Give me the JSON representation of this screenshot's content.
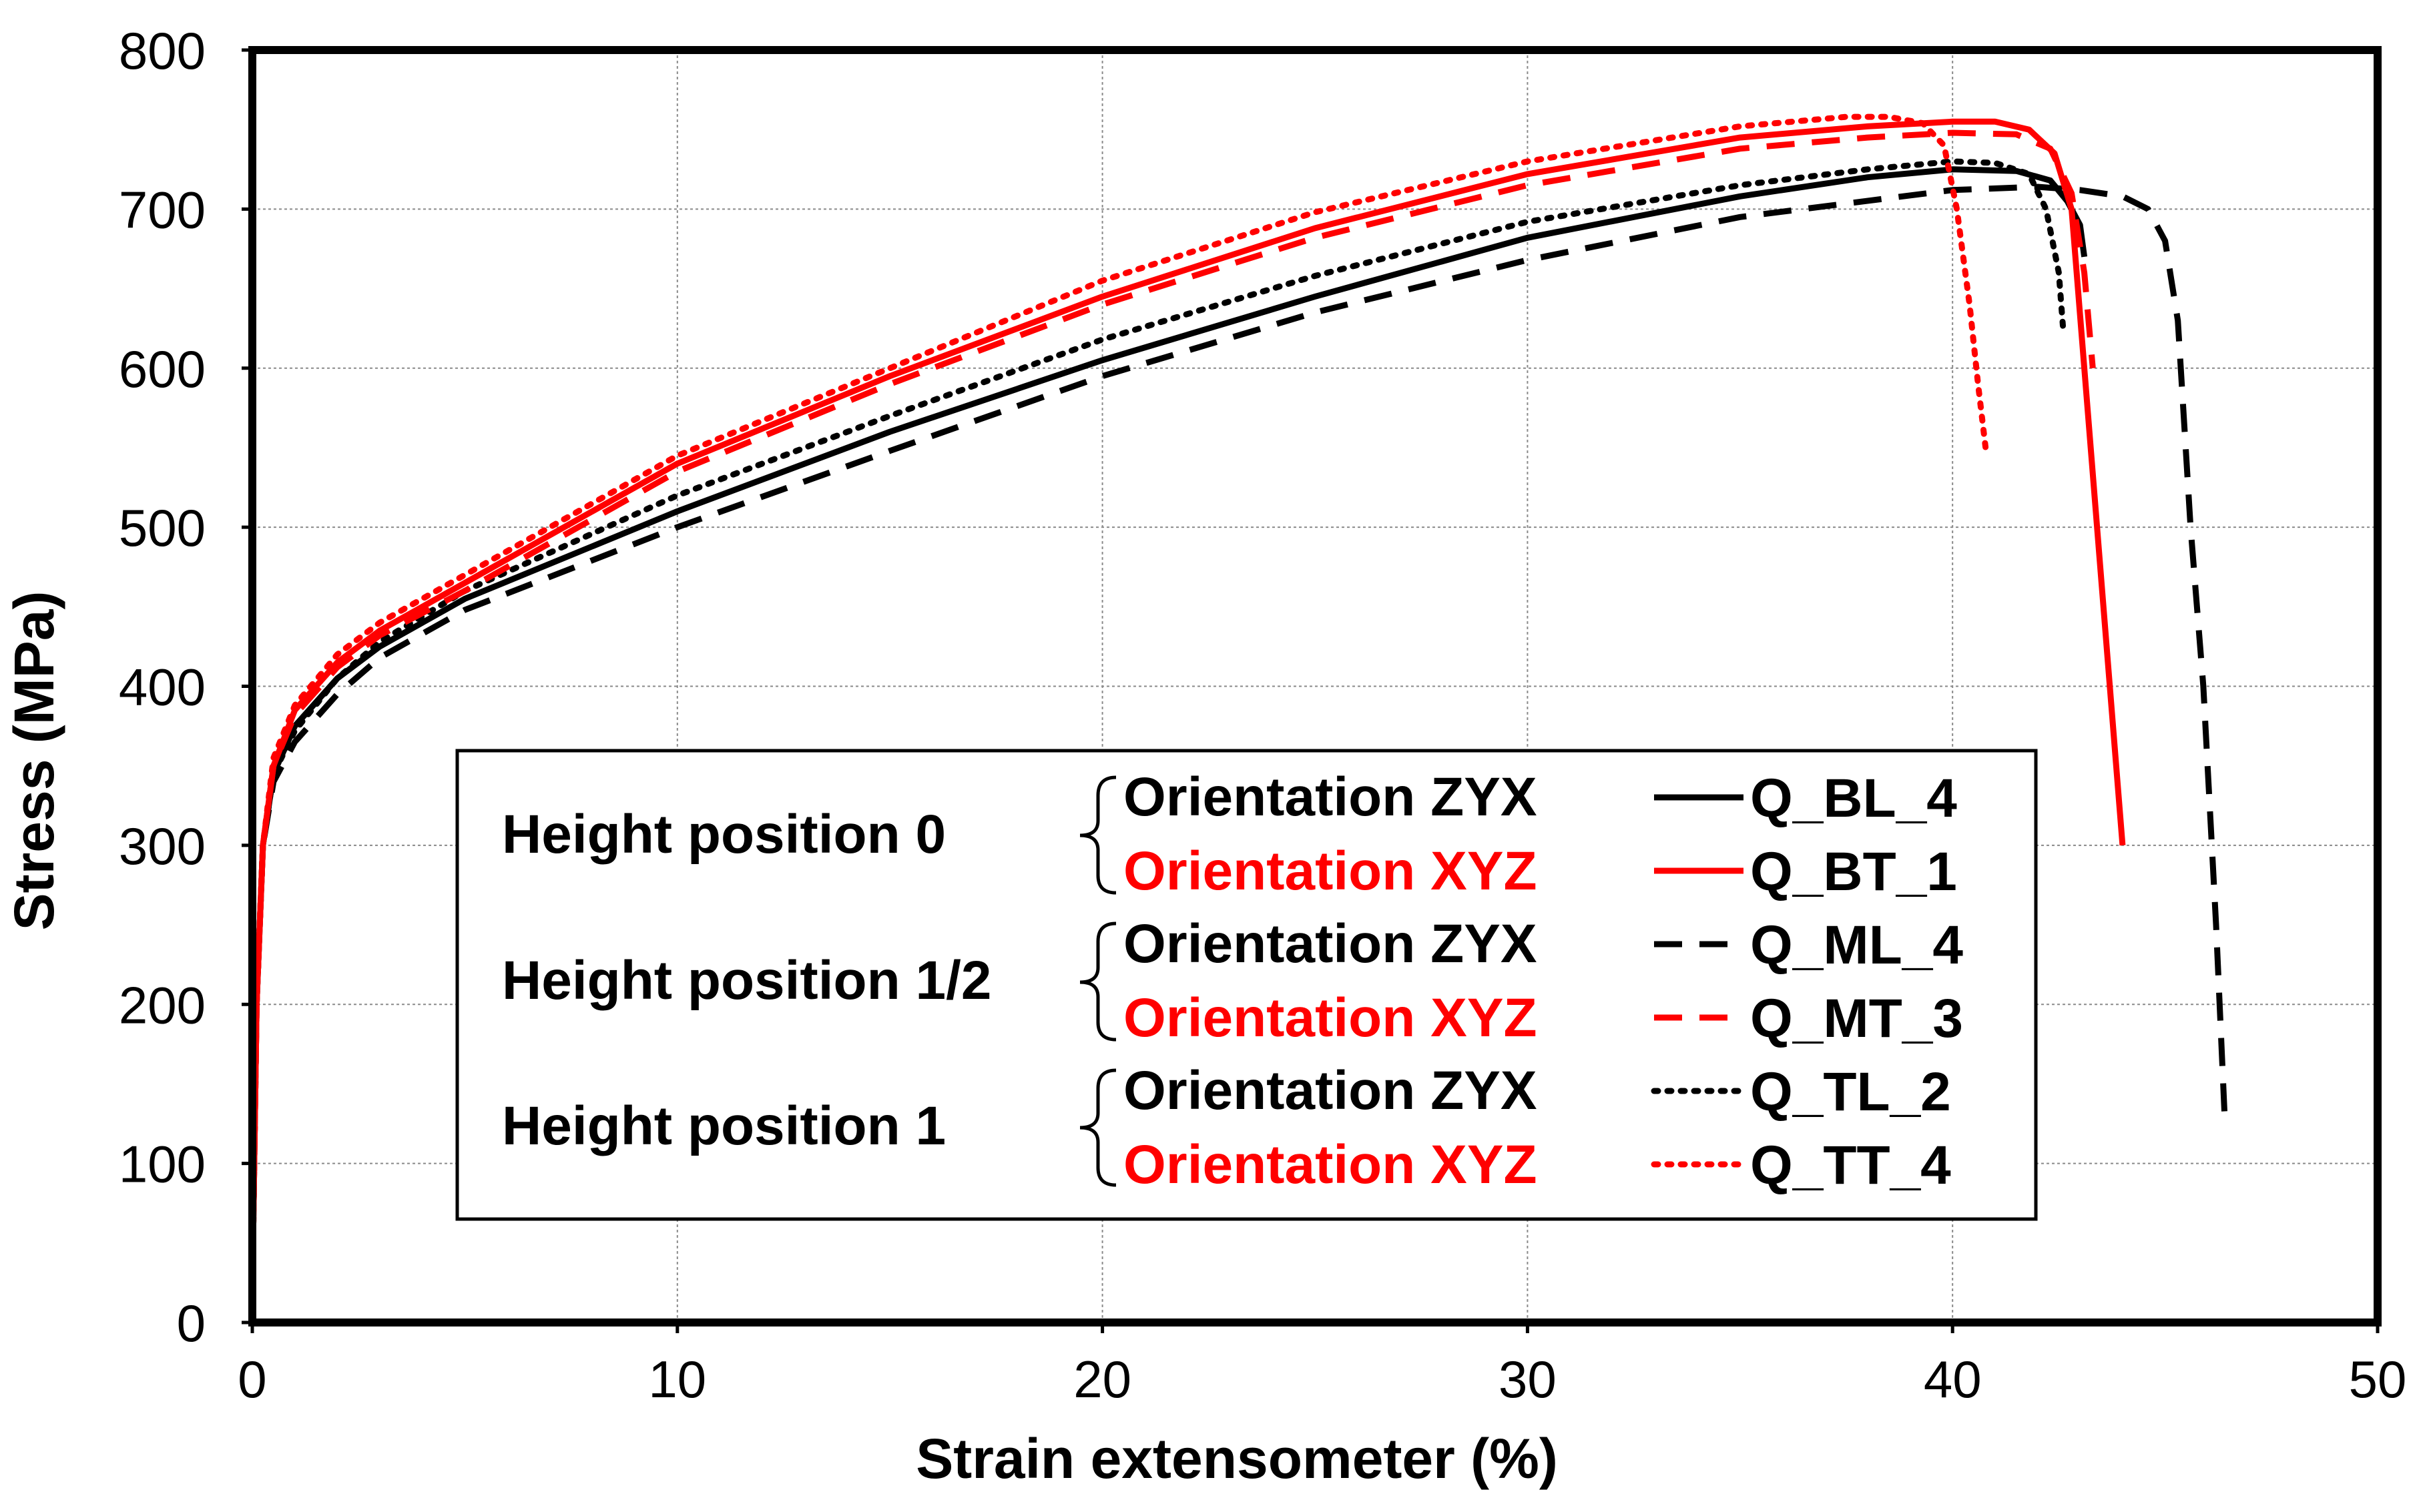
{
  "chart_data": {
    "type": "line",
    "xlabel": "Strain extensometer (%)",
    "ylabel": "Stress (MPa)",
    "xlim": [
      0,
      50
    ],
    "ylim": [
      0,
      800
    ],
    "x_ticks": [
      0,
      10,
      20,
      30,
      40,
      50
    ],
    "y_ticks": [
      0,
      100,
      200,
      300,
      400,
      500,
      600,
      700,
      800
    ],
    "grid": true,
    "legend_placement": "lower-center",
    "legend": {
      "groups": [
        {
          "label": "Height position 0",
          "orientations": [
            "Orientation ZYX",
            "Orientation XYZ"
          ]
        },
        {
          "label": "Height position 1/2",
          "orientations": [
            "Orientation ZYX",
            "Orientation XYZ"
          ]
        },
        {
          "label": "Height position 1",
          "orientations": [
            "Orientation ZYX",
            "Orientation XYZ"
          ]
        }
      ]
    },
    "series": [
      {
        "name": "Q_BL_4",
        "color": "#000000",
        "style": "solid",
        "points": [
          [
            0,
            20
          ],
          [
            0.1,
            200
          ],
          [
            0.25,
            300
          ],
          [
            0.5,
            345
          ],
          [
            1,
            375
          ],
          [
            2,
            405
          ],
          [
            3,
            425
          ],
          [
            5,
            455
          ],
          [
            10,
            510
          ],
          [
            15,
            560
          ],
          [
            20,
            605
          ],
          [
            25,
            645
          ],
          [
            30,
            682
          ],
          [
            35,
            708
          ],
          [
            38,
            720
          ],
          [
            40,
            725
          ],
          [
            41.5,
            724
          ],
          [
            42.3,
            718
          ],
          [
            42.7,
            705
          ],
          [
            43,
            690
          ],
          [
            43.1,
            670
          ]
        ]
      },
      {
        "name": "Q_BT_1",
        "color": "#ff0000",
        "style": "solid",
        "points": [
          [
            0,
            20
          ],
          [
            0.1,
            200
          ],
          [
            0.25,
            300
          ],
          [
            0.5,
            350
          ],
          [
            1,
            385
          ],
          [
            2,
            415
          ],
          [
            3,
            435
          ],
          [
            5,
            465
          ],
          [
            10,
            540
          ],
          [
            15,
            595
          ],
          [
            20,
            645
          ],
          [
            25,
            688
          ],
          [
            30,
            722
          ],
          [
            35,
            745
          ],
          [
            38,
            752
          ],
          [
            40,
            755
          ],
          [
            41,
            755
          ],
          [
            41.8,
            750
          ],
          [
            42.4,
            735
          ],
          [
            42.8,
            700
          ],
          [
            43.1,
            600
          ],
          [
            43.4,
            500
          ],
          [
            43.7,
            400
          ],
          [
            44,
            300
          ]
        ]
      },
      {
        "name": "Q_ML_4",
        "color": "#000000",
        "style": "dashed",
        "points": [
          [
            0,
            20
          ],
          [
            0.1,
            200
          ],
          [
            0.25,
            300
          ],
          [
            0.5,
            340
          ],
          [
            1,
            365
          ],
          [
            2,
            395
          ],
          [
            3,
            418
          ],
          [
            5,
            448
          ],
          [
            10,
            500
          ],
          [
            15,
            548
          ],
          [
            20,
            595
          ],
          [
            25,
            635
          ],
          [
            30,
            668
          ],
          [
            35,
            695
          ],
          [
            40,
            712
          ],
          [
            42,
            714
          ],
          [
            43,
            712
          ],
          [
            44,
            708
          ],
          [
            44.6,
            700
          ],
          [
            45,
            680
          ],
          [
            45.3,
            630
          ],
          [
            45.6,
            500
          ],
          [
            45.9,
            400
          ],
          [
            46.2,
            250
          ],
          [
            46.4,
            130
          ]
        ]
      },
      {
        "name": "Q_MT_3",
        "color": "#ff0000",
        "style": "dashed",
        "points": [
          [
            0,
            20
          ],
          [
            0.1,
            200
          ],
          [
            0.25,
            300
          ],
          [
            0.5,
            350
          ],
          [
            1,
            382
          ],
          [
            2,
            412
          ],
          [
            3,
            432
          ],
          [
            5,
            460
          ],
          [
            10,
            535
          ],
          [
            15,
            590
          ],
          [
            20,
            640
          ],
          [
            25,
            682
          ],
          [
            30,
            715
          ],
          [
            35,
            738
          ],
          [
            38,
            745
          ],
          [
            40,
            748
          ],
          [
            41.5,
            747
          ],
          [
            42.3,
            738
          ],
          [
            42.8,
            710
          ],
          [
            43.1,
            660
          ],
          [
            43.3,
            600
          ]
        ]
      },
      {
        "name": "Q_TL_2",
        "color": "#000000",
        "style": "dotted",
        "points": [
          [
            0,
            20
          ],
          [
            0.1,
            200
          ],
          [
            0.25,
            300
          ],
          [
            0.5,
            345
          ],
          [
            1,
            372
          ],
          [
            2,
            405
          ],
          [
            3,
            428
          ],
          [
            5,
            460
          ],
          [
            10,
            520
          ],
          [
            15,
            570
          ],
          [
            20,
            618
          ],
          [
            25,
            658
          ],
          [
            30,
            692
          ],
          [
            35,
            715
          ],
          [
            38,
            725
          ],
          [
            40,
            730
          ],
          [
            41,
            729
          ],
          [
            41.8,
            722
          ],
          [
            42.2,
            700
          ],
          [
            42.5,
            660
          ],
          [
            42.6,
            625
          ]
        ]
      },
      {
        "name": "Q_TT_4",
        "color": "#ff0000",
        "style": "dotted",
        "points": [
          [
            0,
            20
          ],
          [
            0.1,
            200
          ],
          [
            0.25,
            300
          ],
          [
            0.5,
            355
          ],
          [
            1,
            388
          ],
          [
            2,
            420
          ],
          [
            3,
            440
          ],
          [
            5,
            470
          ],
          [
            10,
            545
          ],
          [
            15,
            600
          ],
          [
            20,
            655
          ],
          [
            25,
            698
          ],
          [
            30,
            730
          ],
          [
            35,
            752
          ],
          [
            37.5,
            758
          ],
          [
            38.5,
            758
          ],
          [
            39.3,
            754
          ],
          [
            39.8,
            740
          ],
          [
            40.1,
            700
          ],
          [
            40.4,
            640
          ],
          [
            40.6,
            590
          ],
          [
            40.8,
            545
          ]
        ]
      }
    ]
  }
}
